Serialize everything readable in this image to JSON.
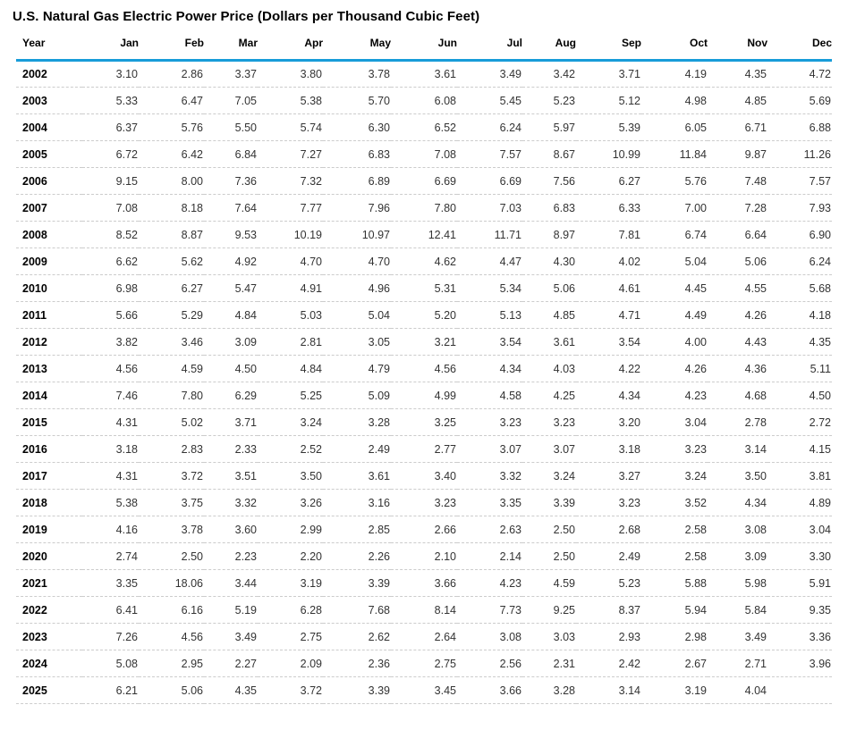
{
  "chart_data": {
    "type": "table",
    "title": "U.S. Natural Gas Electric Power Price (Dollars per Thousand Cubic Feet)",
    "unit": "Dollars per Thousand Cubic Feet",
    "columns": [
      "Year",
      "Jan",
      "Feb",
      "Mar",
      "Apr",
      "May",
      "Jun",
      "Jul",
      "Aug",
      "Sep",
      "Oct",
      "Nov",
      "Dec"
    ],
    "rows": [
      {
        "year": "2002",
        "values": [
          3.1,
          2.86,
          3.37,
          3.8,
          3.78,
          3.61,
          3.49,
          3.42,
          3.71,
          4.19,
          4.35,
          4.72
        ]
      },
      {
        "year": "2003",
        "values": [
          5.33,
          6.47,
          7.05,
          5.38,
          5.7,
          6.08,
          5.45,
          5.23,
          5.12,
          4.98,
          4.85,
          5.69
        ]
      },
      {
        "year": "2004",
        "values": [
          6.37,
          5.76,
          5.5,
          5.74,
          6.3,
          6.52,
          6.24,
          5.97,
          5.39,
          6.05,
          6.71,
          6.88
        ]
      },
      {
        "year": "2005",
        "values": [
          6.72,
          6.42,
          6.84,
          7.27,
          6.83,
          7.08,
          7.57,
          8.67,
          10.99,
          11.84,
          9.87,
          11.26
        ]
      },
      {
        "year": "2006",
        "values": [
          9.15,
          8.0,
          7.36,
          7.32,
          6.89,
          6.69,
          6.69,
          7.56,
          6.27,
          5.76,
          7.48,
          7.57
        ]
      },
      {
        "year": "2007",
        "values": [
          7.08,
          8.18,
          7.64,
          7.77,
          7.96,
          7.8,
          7.03,
          6.83,
          6.33,
          7.0,
          7.28,
          7.93
        ]
      },
      {
        "year": "2008",
        "values": [
          8.52,
          8.87,
          9.53,
          10.19,
          10.97,
          12.41,
          11.71,
          8.97,
          7.81,
          6.74,
          6.64,
          6.9
        ]
      },
      {
        "year": "2009",
        "values": [
          6.62,
          5.62,
          4.92,
          4.7,
          4.7,
          4.62,
          4.47,
          4.3,
          4.02,
          5.04,
          5.06,
          6.24
        ]
      },
      {
        "year": "2010",
        "values": [
          6.98,
          6.27,
          5.47,
          4.91,
          4.96,
          5.31,
          5.34,
          5.06,
          4.61,
          4.45,
          4.55,
          5.68
        ]
      },
      {
        "year": "2011",
        "values": [
          5.66,
          5.29,
          4.84,
          5.03,
          5.04,
          5.2,
          5.13,
          4.85,
          4.71,
          4.49,
          4.26,
          4.18
        ]
      },
      {
        "year": "2012",
        "values": [
          3.82,
          3.46,
          3.09,
          2.81,
          3.05,
          3.21,
          3.54,
          3.61,
          3.54,
          4.0,
          4.43,
          4.35
        ]
      },
      {
        "year": "2013",
        "values": [
          4.56,
          4.59,
          4.5,
          4.84,
          4.79,
          4.56,
          4.34,
          4.03,
          4.22,
          4.26,
          4.36,
          5.11
        ]
      },
      {
        "year": "2014",
        "values": [
          7.46,
          7.8,
          6.29,
          5.25,
          5.09,
          4.99,
          4.58,
          4.25,
          4.34,
          4.23,
          4.68,
          4.5
        ]
      },
      {
        "year": "2015",
        "values": [
          4.31,
          5.02,
          3.71,
          3.24,
          3.28,
          3.25,
          3.23,
          3.23,
          3.2,
          3.04,
          2.78,
          2.72
        ]
      },
      {
        "year": "2016",
        "values": [
          3.18,
          2.83,
          2.33,
          2.52,
          2.49,
          2.77,
          3.07,
          3.07,
          3.18,
          3.23,
          3.14,
          4.15
        ]
      },
      {
        "year": "2017",
        "values": [
          4.31,
          3.72,
          3.51,
          3.5,
          3.61,
          3.4,
          3.32,
          3.24,
          3.27,
          3.24,
          3.5,
          3.81
        ]
      },
      {
        "year": "2018",
        "values": [
          5.38,
          3.75,
          3.32,
          3.26,
          3.16,
          3.23,
          3.35,
          3.39,
          3.23,
          3.52,
          4.34,
          4.89
        ]
      },
      {
        "year": "2019",
        "values": [
          4.16,
          3.78,
          3.6,
          2.99,
          2.85,
          2.66,
          2.63,
          2.5,
          2.68,
          2.58,
          3.08,
          3.04
        ]
      },
      {
        "year": "2020",
        "values": [
          2.74,
          2.5,
          2.23,
          2.2,
          2.26,
          2.1,
          2.14,
          2.5,
          2.49,
          2.58,
          3.09,
          3.3
        ]
      },
      {
        "year": "2021",
        "values": [
          3.35,
          18.06,
          3.44,
          3.19,
          3.39,
          3.66,
          4.23,
          4.59,
          5.23,
          5.88,
          5.98,
          5.91
        ]
      },
      {
        "year": "2022",
        "values": [
          6.41,
          6.16,
          5.19,
          6.28,
          7.68,
          8.14,
          7.73,
          9.25,
          8.37,
          5.94,
          5.84,
          9.35
        ]
      },
      {
        "year": "2023",
        "values": [
          7.26,
          4.56,
          3.49,
          2.75,
          2.62,
          2.64,
          3.08,
          3.03,
          2.93,
          2.98,
          3.49,
          3.36
        ]
      },
      {
        "year": "2024",
        "values": [
          5.08,
          2.95,
          2.27,
          2.09,
          2.36,
          2.75,
          2.56,
          2.31,
          2.42,
          2.67,
          2.71,
          3.96
        ]
      },
      {
        "year": "2025",
        "values": [
          6.21,
          5.06,
          4.35,
          3.72,
          3.39,
          3.45,
          3.66,
          3.28,
          3.14,
          3.19,
          4.04,
          null
        ]
      }
    ]
  },
  "colors": {
    "accent_rule": "#189cd9",
    "row_divider": "#cccccc",
    "cell_text": "#333333",
    "heading_text": "#000000"
  }
}
